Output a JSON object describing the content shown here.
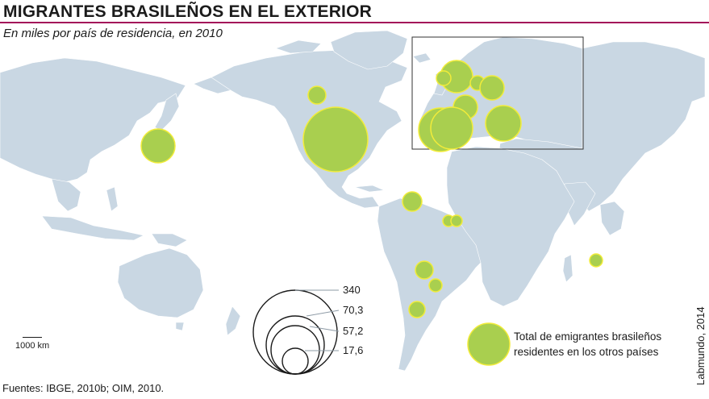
{
  "title": "MIGRANTES BRASILEÑOS EN EL EXTERIOR",
  "subtitle": "En miles por país de residencia, en 2010",
  "scale_label": "1000 km",
  "size_legend": [
    "340",
    "70,3",
    "57,2",
    "17,6"
  ],
  "legend": {
    "line1": "Total de emigrantes brasileños",
    "line2": "residentes en los otros países"
  },
  "sources": "Fuentes: IBGE, 2010b; OIM, 2010.",
  "credit": "Labmundo, 2014",
  "colors": {
    "land": "#c9d7e3",
    "border": "#ffffff",
    "bubble_fill": "#a9cf4f",
    "bubble_stroke": "#f2ec3a",
    "title_rule": "#a3125a"
  }
}
